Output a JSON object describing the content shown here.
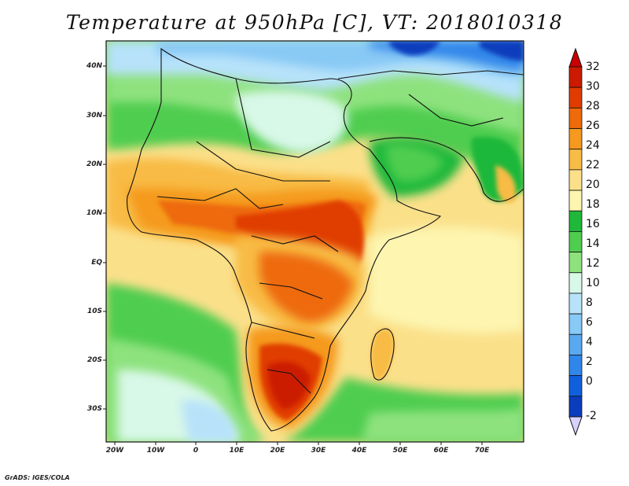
{
  "title": "Temperature at 950hPa [C], VT: 2018010318",
  "credit": "GrADS: IGES/COLA",
  "lat_labels": [
    "40N",
    "30N",
    "20N",
    "10N",
    "EQ",
    "10S",
    "20S",
    "30S"
  ],
  "lon_labels": [
    "20W",
    "10W",
    "0",
    "10E",
    "20E",
    "30E",
    "40E",
    "50E",
    "60E",
    "70E"
  ],
  "colorbar": {
    "levels": [
      "32",
      "30",
      "28",
      "26",
      "24",
      "22",
      "20",
      "18",
      "16",
      "14",
      "12",
      "10",
      "8",
      "6",
      "4",
      "2",
      "0",
      "-2"
    ],
    "colors": [
      "#cc1a00",
      "#e03c00",
      "#ee6a0a",
      "#f59a1e",
      "#f8bb45",
      "#fbe08a",
      "#fdf5b0",
      "#1fb83a",
      "#4fcd4f",
      "#8ee27e",
      "#d8f8e8",
      "#b7e2fa",
      "#88c9f5",
      "#58aaf0",
      "#3186ea",
      "#1060dc",
      "#0a3cbc",
      "#040c80"
    ],
    "over_color": "#c80000",
    "under_color": "#d8d0ff"
  },
  "map": {
    "ocean_color": "#fbe08a",
    "north_color": "#88c9f5",
    "warm_colors": [
      "#fdf5b0",
      "#f8bb45",
      "#f59a1e",
      "#ee6a0a",
      "#e03c00",
      "#cc1a00"
    ],
    "cool_colors": [
      "#1fb83a",
      "#4fcd4f",
      "#8ee27e",
      "#d8f8e8",
      "#b7e2fa",
      "#58aaf0",
      "#1060dc",
      "#040c80"
    ]
  }
}
